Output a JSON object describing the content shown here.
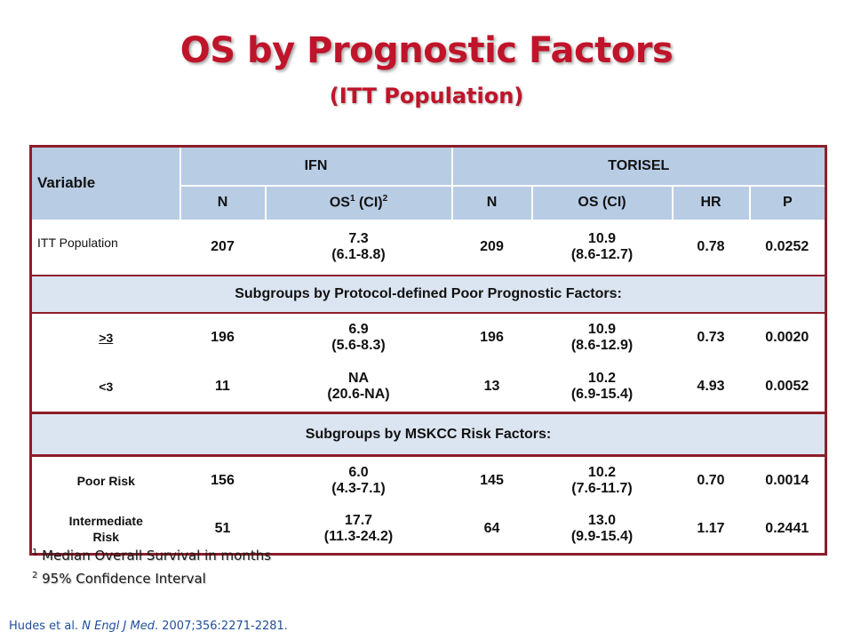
{
  "title": "OS by Prognostic Factors",
  "subtitle": "(ITT Population)",
  "table": {
    "header": {
      "variable": "Variable",
      "group_ifn": "IFN",
      "group_torisel": "TORISEL",
      "n1": "N",
      "os1_prefix": "OS",
      "os1_sup1": "1",
      "os1_mid": " (CI)",
      "os1_sup2": "2",
      "n2": "N",
      "os2": "OS (CI)",
      "hr": "HR",
      "p": "P"
    },
    "itt": {
      "label": "ITT Population",
      "ifn_n": "207",
      "ifn_os": "7.3",
      "ifn_ci": "(6.1-8.8)",
      "tor_n": "209",
      "tor_os": "10.9",
      "tor_ci": "(8.6-12.7)",
      "hr": "0.78",
      "p": "0.0252"
    },
    "band1": "Subgroups by Protocol-defined Poor Prognostic Factors:",
    "ge3": {
      "label": ">3",
      "ifn_n": "196",
      "ifn_os": "6.9",
      "ifn_ci": "(5.6-8.3)",
      "tor_n": "196",
      "tor_os": "10.9",
      "tor_ci": "(8.6-12.9)",
      "hr": "0.73",
      "p": "0.0020"
    },
    "lt3": {
      "label": "<3",
      "ifn_n": "11",
      "ifn_os": "NA",
      "ifn_ci": "(20.6-NA)",
      "tor_n": "13",
      "tor_os": "10.2",
      "tor_ci": "(6.9-15.4)",
      "hr": "4.93",
      "p": "0.0052"
    },
    "band2": "Subgroups by MSKCC Risk Factors:",
    "poor": {
      "label": "Poor Risk",
      "ifn_n": "156",
      "ifn_os": "6.0",
      "ifn_ci": "(4.3-7.1)",
      "tor_n": "145",
      "tor_os": "10.2",
      "tor_ci": "(7.6-11.7)",
      "hr": "0.70",
      "p": "0.0014"
    },
    "intermediate": {
      "label_line1": "Intermediate",
      "label_line2": "Risk",
      "ifn_n": "51",
      "ifn_os": "17.7",
      "ifn_ci": "(11.3-24.2)",
      "tor_n": "64",
      "tor_os": "13.0",
      "tor_ci": "(9.9-15.4)",
      "hr": "1.17",
      "p": "0.2441"
    }
  },
  "footnotes": {
    "f1_mark": "1",
    "f1_text": " Median Overall Survival in months",
    "f2_mark": "2",
    "f2_text": " 95% Confidence Interval"
  },
  "citation": {
    "authors": "Hudes et al. ",
    "journal": "N Engl J Med",
    "rest": ". 2007;356:2271-2281."
  }
}
